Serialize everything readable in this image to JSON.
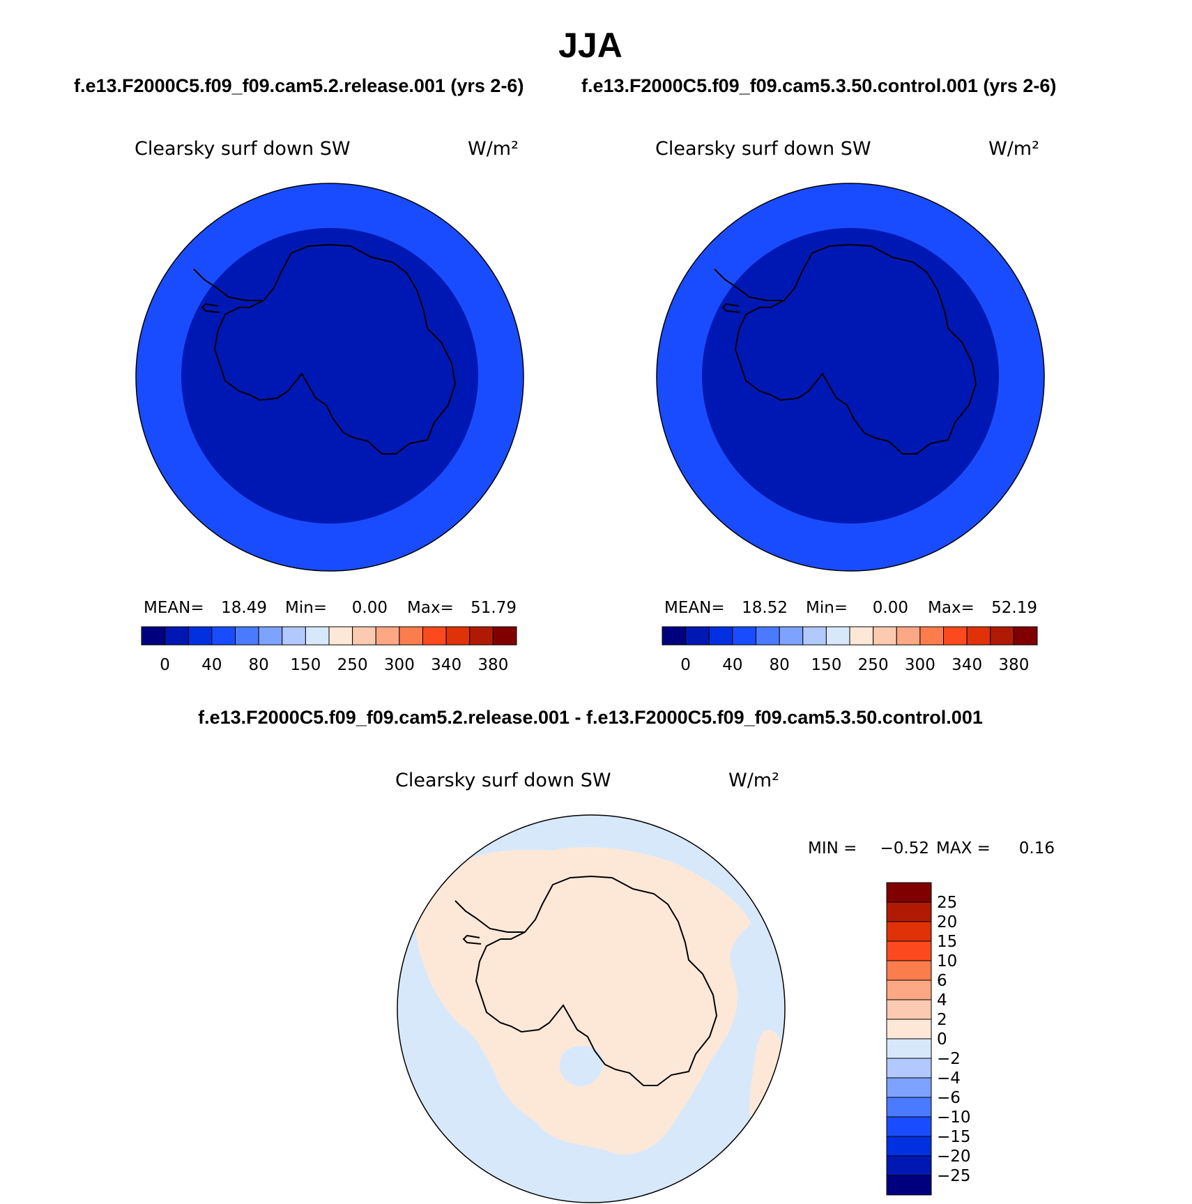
{
  "title": "JJA",
  "case_a_header": "f.e13.F2000C5.f09_f09.cam5.2.release.001 (yrs 2-6)",
  "case_b_header": "f.e13.F2000C5.f09_f09.cam5.3.50.control.001 (yrs 2-6)",
  "diff_header": "f.e13.F2000C5.f09_f09.cam5.2.release.001 - f.e13.F2000C5.f09_f09.cam5.3.50.control.001",
  "colors": {
    "main_scale": [
      "#00007f",
      "#0018b3",
      "#0030e0",
      "#1a4cff",
      "#4a7aff",
      "#7ea2ff",
      "#b1c9ff",
      "#d8e8fb",
      "#fde8d8",
      "#fccab0",
      "#fca884",
      "#fc7d4c",
      "#fc4a1e",
      "#e03208",
      "#b01a04",
      "#800000"
    ],
    "diff_scale": [
      "#00007f",
      "#0018b3",
      "#0030e0",
      "#1a4cff",
      "#4a7aff",
      "#7ea2ff",
      "#b1c9ff",
      "#d8e8fb",
      "#fde8d8",
      "#fccab0",
      "#fca884",
      "#fc7d4c",
      "#fc4a1e",
      "#e03208",
      "#b01a04",
      "#800000"
    ],
    "outer_ring": "#1a4cff",
    "inner_disk": "#0018b3",
    "diff_negative": "#d8e8fb",
    "diff_positive": "#fde8d8"
  },
  "chart_data": [
    {
      "type": "heatmap",
      "projection": "south-polar-stereographic",
      "variable_label": "Clearsky surf down SW",
      "units": "W/m²",
      "stats": {
        "mean_label": "MEAN=",
        "mean": "18.49",
        "min_label": "Min=",
        "min": "0.00",
        "max_label": "Max=",
        "max": "51.79"
      },
      "field": {
        "outer_ring_range": [
          40,
          80
        ],
        "inner_region_range": [
          0,
          40
        ]
      },
      "colorbar_labels": [
        "0",
        "40",
        "80",
        "150",
        "250",
        "300",
        "340",
        "380"
      ]
    },
    {
      "type": "heatmap",
      "projection": "south-polar-stereographic",
      "variable_label": "Clearsky surf down SW",
      "units": "W/m²",
      "stats": {
        "mean_label": "MEAN=",
        "mean": "18.52",
        "min_label": "Min=",
        "min": "0.00",
        "max_label": "Max=",
        "max": "52.19"
      },
      "field": {
        "outer_ring_range": [
          40,
          80
        ],
        "inner_region_range": [
          0,
          40
        ]
      },
      "colorbar_labels": [
        "0",
        "40",
        "80",
        "150",
        "250",
        "300",
        "340",
        "380"
      ]
    },
    {
      "type": "heatmap",
      "projection": "south-polar-stereographic",
      "variable_label": "Clearsky surf down SW",
      "units": "W/m²",
      "stats": {
        "min_label": "MIN =",
        "min": "−0.52",
        "max_label": "MAX =",
        "max": "0.16"
      },
      "field": {
        "ocean_range": [
          -2,
          0
        ],
        "continent_range": [
          0,
          2
        ]
      },
      "colorbar_labels": [
        "25",
        "20",
        "15",
        "10",
        "6",
        "4",
        "2",
        "0",
        "−2",
        "−4",
        "−6",
        "−10",
        "−15",
        "−20",
        "−25"
      ]
    }
  ]
}
